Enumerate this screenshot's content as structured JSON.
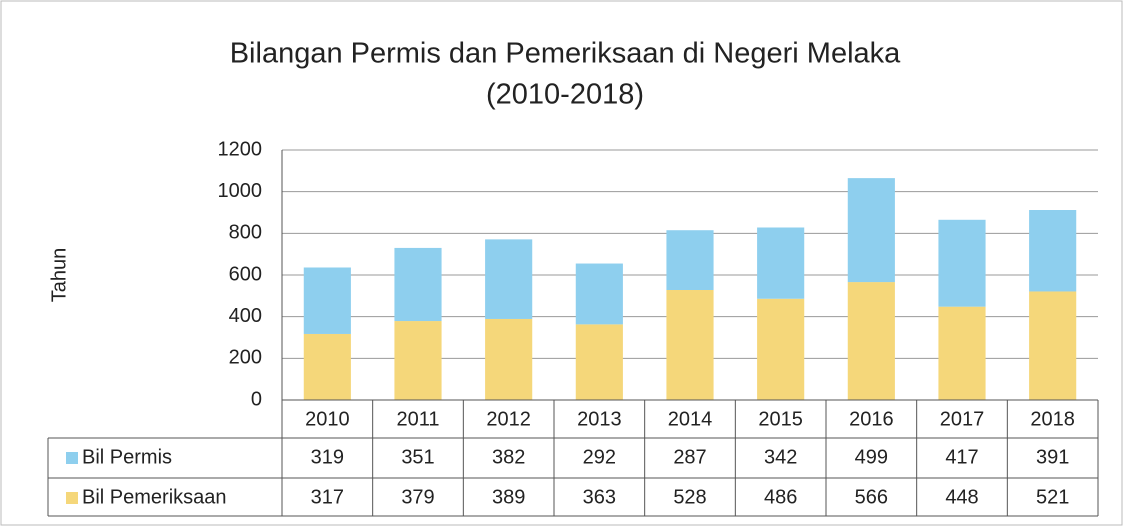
{
  "chart_data": {
    "type": "stacked_bar",
    "title": "Bilangan Permis dan Pemeriksaan di Negeri Melaka",
    "subtitle": "(2010-2018)",
    "y_label": "Tahun",
    "categories": [
      "2010",
      "2011",
      "2012",
      "2013",
      "2014",
      "2015",
      "2016",
      "2017",
      "2018"
    ],
    "series": [
      {
        "name": "Bil Permis",
        "color": "#8ecfee",
        "values": [
          319,
          351,
          382,
          292,
          287,
          342,
          499,
          417,
          391
        ]
      },
      {
        "name": "Bil Pemeriksaan",
        "color": "#f5d77a",
        "values": [
          317,
          379,
          389,
          363,
          528,
          486,
          566,
          448,
          521
        ]
      }
    ],
    "ylim": [
      0,
      1200
    ],
    "yticks": [
      0,
      200,
      400,
      600,
      800,
      1000,
      1200
    ],
    "grid": true
  }
}
